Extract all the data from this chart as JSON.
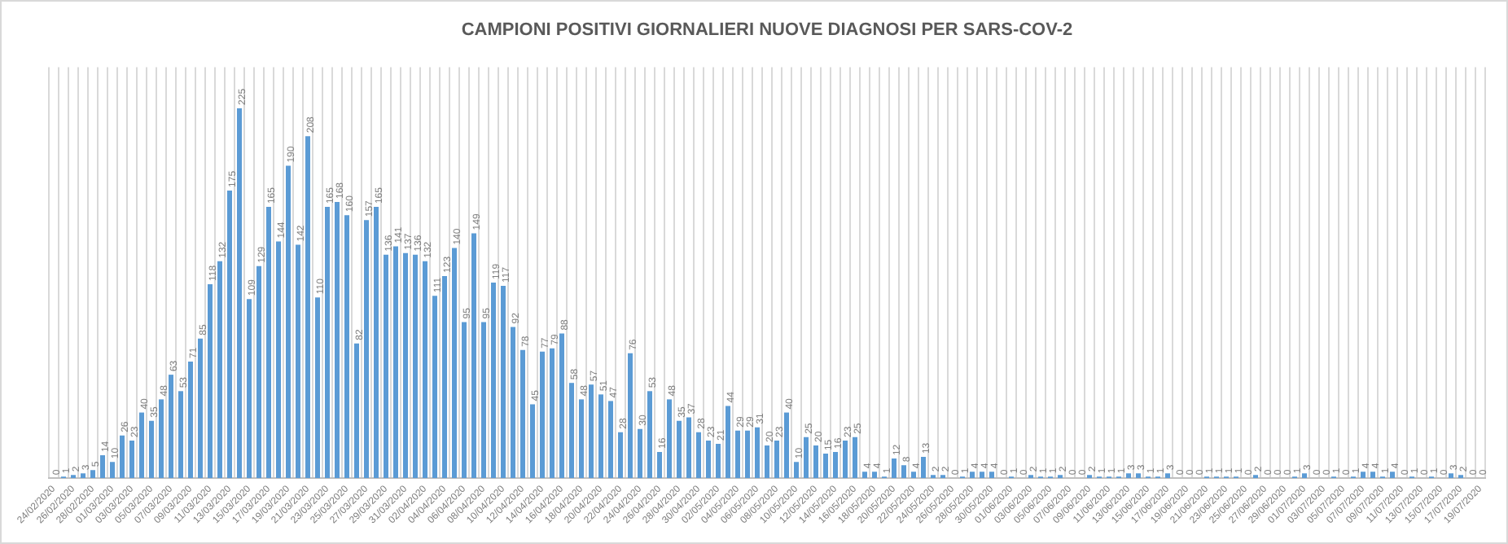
{
  "chart_data": {
    "type": "bar",
    "title": "CAMPIONI POSITIVI GIORNALIERI NUOVE DIAGNOSI PER SARS-COV-2",
    "categories": [
      "24/02/2020",
      null,
      "26/02/2020",
      null,
      "28/02/2020",
      null,
      "01/03/2020",
      null,
      "03/03/2020",
      null,
      "05/03/2020",
      null,
      "07/03/2020",
      null,
      "09/03/2020",
      null,
      "11/03/2020",
      null,
      "13/03/2020",
      null,
      "15/03/2020",
      null,
      "17/03/2020",
      null,
      "19/03/2020",
      null,
      "21/03/2020",
      null,
      "23/03/2020",
      null,
      "25/03/2020",
      null,
      "27/03/2020",
      null,
      "29/03/2020",
      null,
      "31/03/2020",
      null,
      "02/04/2020",
      null,
      "04/04/2020",
      null,
      "06/04/2020",
      null,
      "08/04/2020",
      null,
      "10/04/2020",
      null,
      "12/04/2020",
      null,
      "14/04/2020",
      null,
      "16/04/2020",
      null,
      "18/04/2020",
      null,
      "20/04/2020",
      null,
      "22/04/2020",
      null,
      "24/04/2020",
      null,
      "26/04/2020",
      null,
      "28/04/2020",
      null,
      "30/04/2020",
      null,
      "02/05/2020",
      null,
      "04/05/2020",
      null,
      "06/05/2020",
      null,
      "08/05/2020",
      null,
      "10/05/2020",
      null,
      "12/05/2020",
      null,
      "14/05/2020",
      null,
      "16/05/2020",
      null,
      "18/05/2020",
      null,
      "20/05/2020",
      null,
      "22/05/2020",
      null,
      "24/05/2020",
      null,
      "26/05/2020",
      null,
      "28/05/2020",
      null,
      "30/05/2020",
      null,
      "01/06/2020",
      null,
      "03/06/2020",
      null,
      "05/06/2020",
      null,
      "07/06/2020",
      null,
      "09/06/2020",
      null,
      "11/06/2020",
      null,
      "13/06/2020",
      null,
      "15/06/2020",
      null,
      "17/06/2020",
      null,
      "19/06/2020",
      null,
      "21/06/2020",
      null,
      "23/06/2020",
      null,
      "25/06/2020",
      null,
      "27/06/2020",
      null,
      "29/06/2020",
      null,
      "01/07/2020",
      null,
      "03/07/2020",
      null,
      "05/07/2020",
      null,
      "07/07/2020",
      null,
      "09/07/2020",
      null,
      "11/07/2020",
      null,
      "13/07/2020",
      null,
      "15/07/2020",
      null,
      "17/07/2020",
      null,
      "19/07/2020"
    ],
    "values": [
      0,
      1,
      2,
      3,
      5,
      14,
      10,
      26,
      23,
      40,
      35,
      48,
      63,
      53,
      71,
      85,
      118,
      132,
      175,
      225,
      109,
      129,
      165,
      144,
      190,
      142,
      208,
      110,
      165,
      168,
      160,
      82,
      157,
      165,
      136,
      141,
      137,
      136,
      132,
      111,
      123,
      140,
      95,
      149,
      95,
      119,
      117,
      92,
      78,
      45,
      77,
      79,
      88,
      58,
      48,
      57,
      51,
      47,
      28,
      76,
      30,
      53,
      16,
      48,
      35,
      37,
      28,
      23,
      21,
      44,
      29,
      29,
      31,
      20,
      23,
      40,
      10,
      25,
      20,
      15,
      16,
      23,
      25,
      4,
      4,
      1,
      12,
      8,
      4,
      13,
      2,
      2,
      0,
      1,
      4,
      4,
      4,
      0,
      1,
      0,
      2,
      1,
      1,
      2,
      0,
      0,
      2,
      1,
      1,
      1,
      3,
      3,
      1,
      1,
      3,
      0,
      0,
      0,
      1,
      1,
      1,
      1,
      0,
      2,
      0,
      0,
      0,
      1,
      3,
      0,
      0,
      1,
      0,
      1,
      4,
      4,
      1,
      4,
      0,
      1,
      0,
      1,
      0,
      3,
      2,
      0,
      0
    ],
    "color": "#5b9bd5",
    "data_labels": true,
    "grid": "x",
    "legend": false,
    "tick_labels": "x"
  }
}
